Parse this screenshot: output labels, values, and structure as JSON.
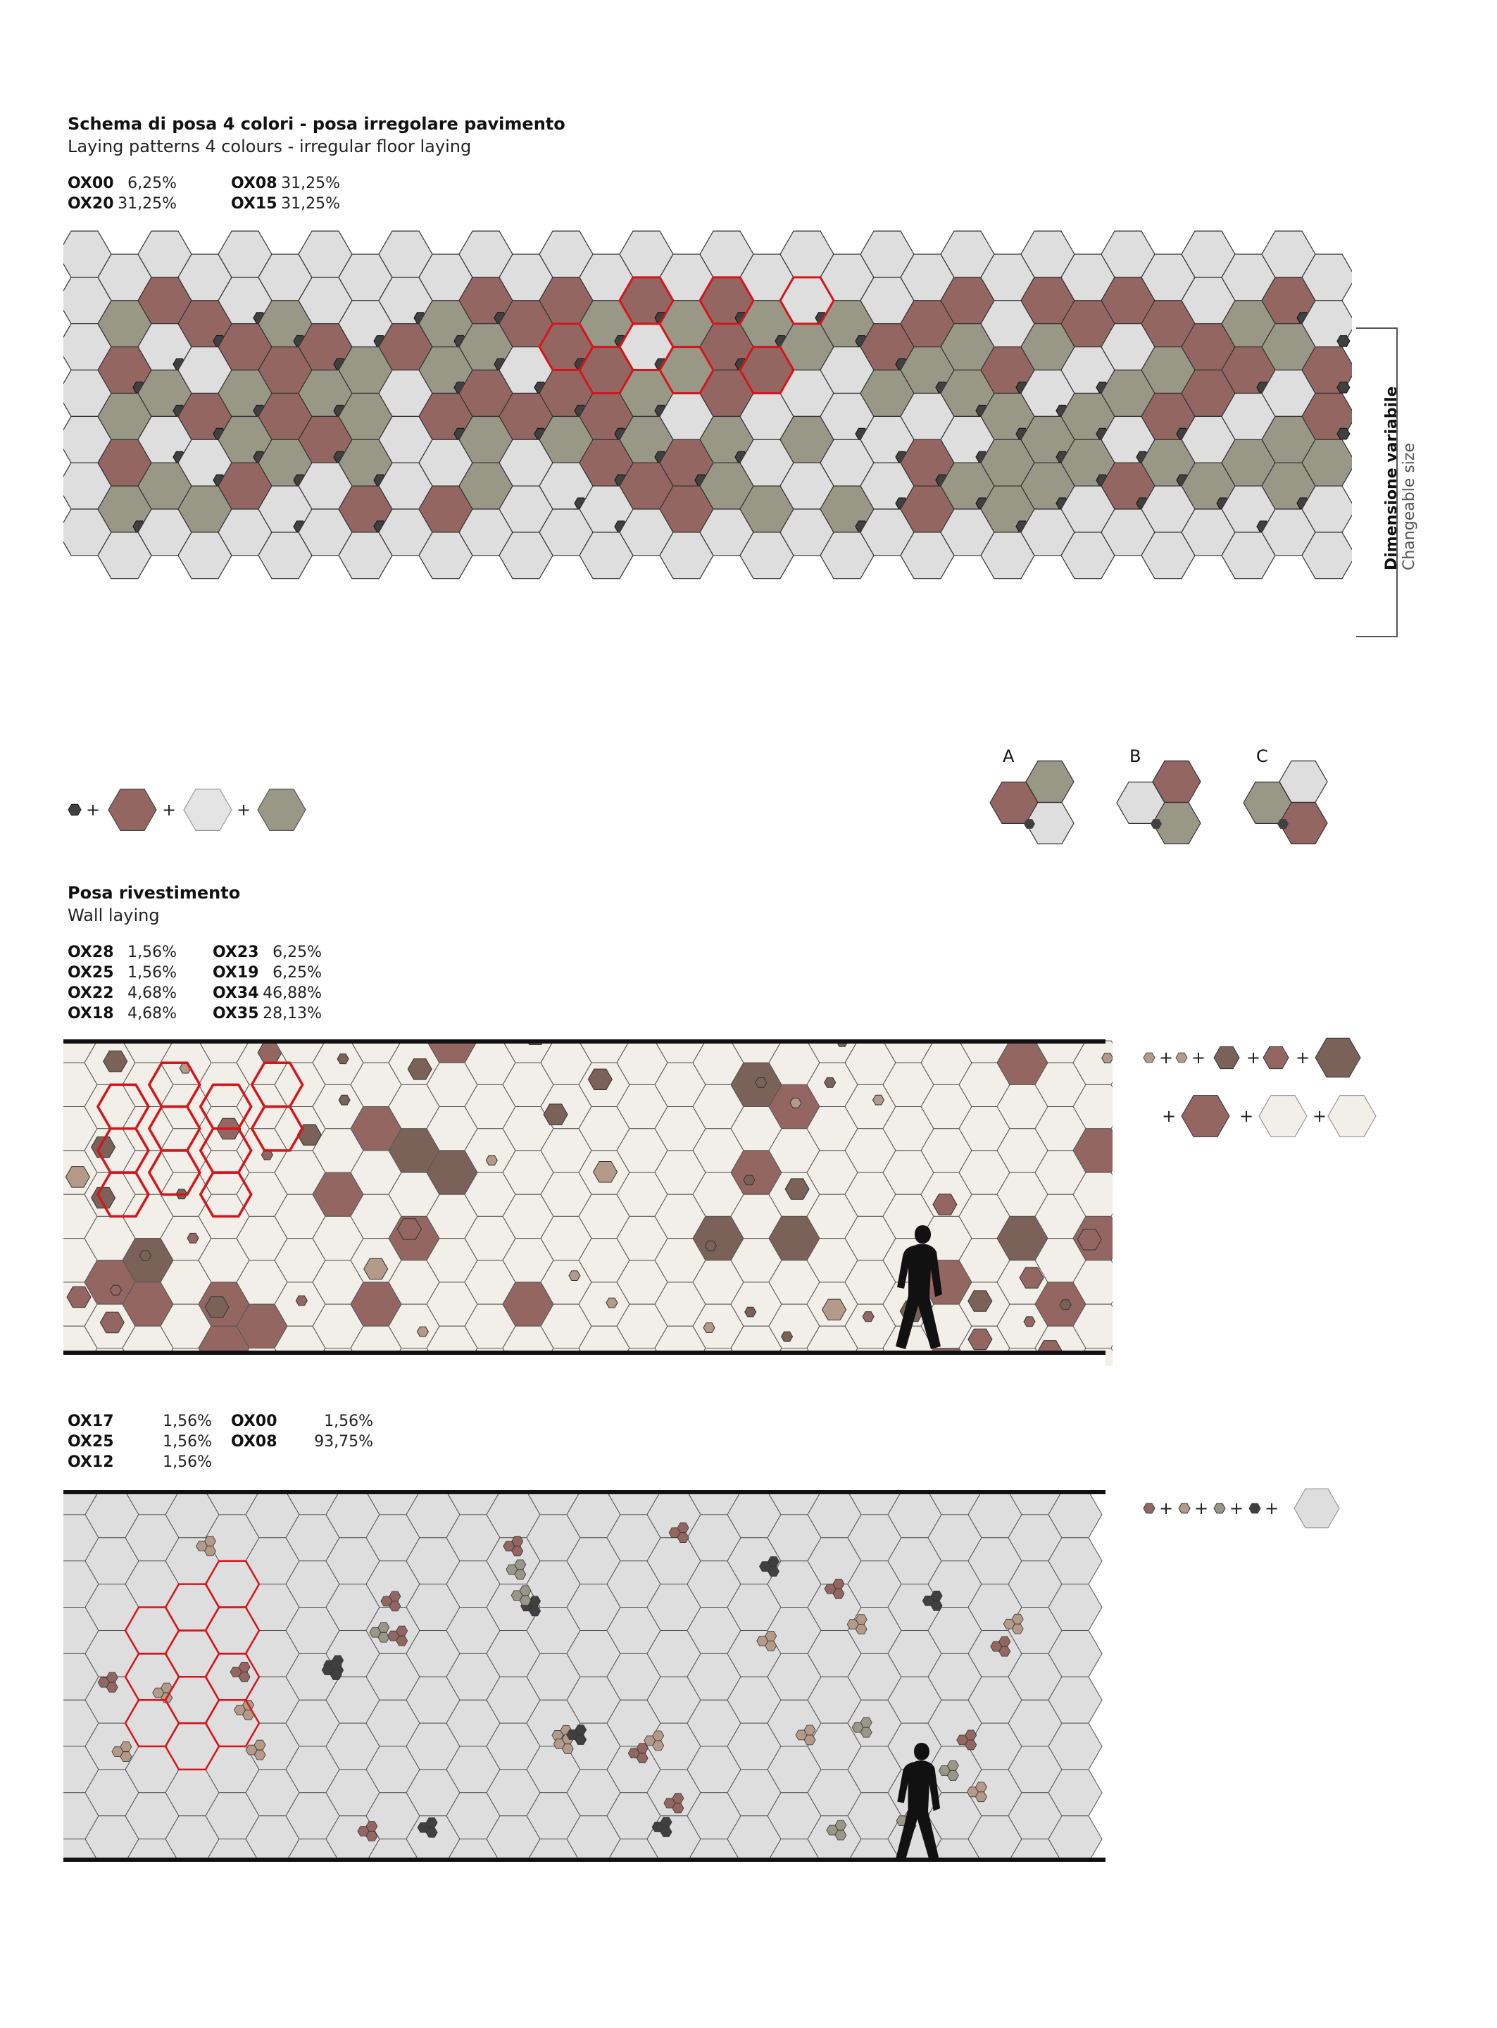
{
  "floor_section": {
    "title": "Schema di posa 4 colori - posa irregolare pavimento",
    "subtitle": "Laying patterns 4 colours - irregular floor laying",
    "codes": [
      {
        "code": "OX00",
        "pct": "6,25%"
      },
      {
        "code": "OX08",
        "pct": "31,25%"
      },
      {
        "code": "OX20",
        "pct": "31,25%"
      },
      {
        "code": "OX15",
        "pct": "31,25%"
      }
    ],
    "size_label_it": "Dimensione variabile",
    "size_label_en": "Changeable size",
    "combo_labels": [
      "A",
      "B",
      "C"
    ],
    "legend_plus": "+"
  },
  "wall_section_1": {
    "title": "Posa rivestimento",
    "subtitle": "Wall laying",
    "codes": [
      {
        "code": "OX28",
        "pct": "1,56%"
      },
      {
        "code": "OX23",
        "pct": "6,25%"
      },
      {
        "code": "OX25",
        "pct": "1,56%"
      },
      {
        "code": "OX19",
        "pct": "6,25%"
      },
      {
        "code": "OX22",
        "pct": "4,68%"
      },
      {
        "code": "OX34",
        "pct": "46,88%"
      },
      {
        "code": "OX18",
        "pct": "4,68%"
      },
      {
        "code": "OX35",
        "pct": "28,13%"
      }
    ]
  },
  "wall_section_2": {
    "codes": [
      {
        "code": "OX17",
        "pct": "1,56%"
      },
      {
        "code": "OX00",
        "pct": "1,56%"
      },
      {
        "code": "OX25",
        "pct": "1,56%"
      },
      {
        "code": "OX08",
        "pct": "93,75%"
      },
      {
        "code": "OX12",
        "pct": "1,56%"
      }
    ]
  },
  "colors": {
    "light_grey": "#dedede",
    "dark_red": "#946662",
    "sage": "#999887",
    "charcoal": "#404040",
    "cream": "#f2eee8",
    "brown": "#7a6258",
    "tan": "#b49a88",
    "highlight_red": "#d4161c"
  }
}
